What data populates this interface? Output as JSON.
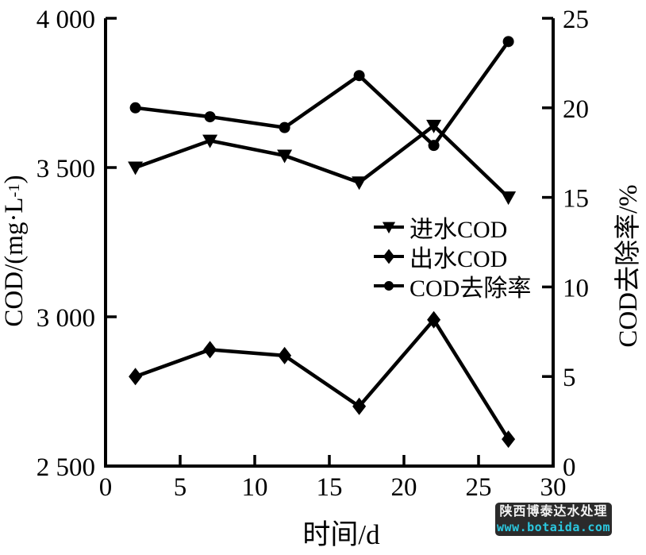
{
  "chart_data": {
    "type": "line",
    "title": "",
    "x_axis_title": "时间/d",
    "y_left_axis_title_parts": {
      "prefix": "COD/(mg·L",
      "sup": "-1",
      "suffix": ")"
    },
    "y_right_axis_title": "COD去除率/%",
    "x": [
      2,
      7,
      12,
      17,
      22,
      27
    ],
    "xlim": [
      0,
      30
    ],
    "xticks": [
      0,
      5,
      10,
      15,
      20,
      25,
      30
    ],
    "xticklabels": [
      "0",
      "5",
      "10",
      "15",
      "20",
      "25",
      "30"
    ],
    "ylim_left": [
      2500,
      4000
    ],
    "yticks_left": [
      2500,
      3000,
      3500,
      4000
    ],
    "yticklabels_left": [
      "2 500",
      "3 000",
      "3 500",
      "4 000"
    ],
    "ylim_right": [
      0,
      25
    ],
    "yticks_right": [
      0,
      5,
      10,
      15,
      20,
      25
    ],
    "yticklabels_right": [
      "0",
      "5",
      "10",
      "15",
      "20",
      "25"
    ],
    "grid": "off",
    "legend_position": "inside-center-right",
    "series": [
      {
        "name": "进水COD",
        "axis": "left",
        "marker": "triangle-down",
        "values": [
          3500,
          3590,
          3540,
          3450,
          3640,
          3400
        ]
      },
      {
        "name": "出水COD",
        "axis": "left",
        "marker": "diamond",
        "values": [
          2800,
          2890,
          2870,
          2700,
          2990,
          2590
        ]
      },
      {
        "name": "COD去除率",
        "axis": "right",
        "marker": "circle",
        "values": [
          20.0,
          19.5,
          18.9,
          21.8,
          17.9,
          23.7
        ]
      }
    ],
    "colors": {
      "line": "#000000",
      "background": "#ffffff"
    }
  },
  "watermark": {
    "line1": "陕西博泰达水处理",
    "line2": "www.botaida.com",
    "bg": "#2b2b2b",
    "line1_color": "#f2f2f2",
    "line2_color": "#2bc8e0"
  }
}
